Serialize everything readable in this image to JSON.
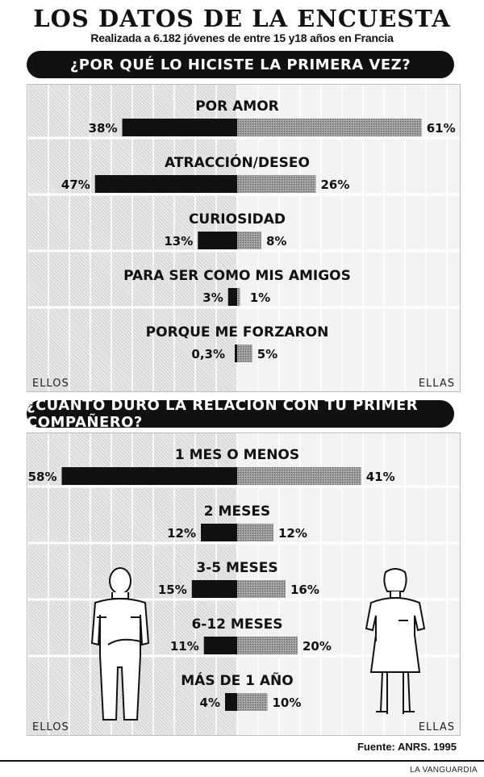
{
  "title": "LOS DATOS DE LA ENCUESTA",
  "subtitle": "Realizada a 6.182 jóvenes de entre 15 y18 años en Francia",
  "source": "Fuente: ANRS. 1995",
  "brand": "LA VANGUARDIA",
  "colors": {
    "ellos": "#111111",
    "ellas": "#8c8c8c",
    "panel": "#e9e9e9"
  },
  "chart_data": [
    {
      "type": "bar",
      "title": "¿POR QUÉ LO HICISTE LA PRIMERA VEZ?",
      "left_label": "ELLOS",
      "right_label": "ELLAS",
      "categories": [
        "POR AMOR",
        "ATRACCIÓN/DESEO",
        "CURIOSIDAD",
        "PARA SER COMO MIS AMIGOS",
        "PORQUE ME FORZARON"
      ],
      "series": [
        {
          "name": "ELLOS",
          "values": [
            38,
            47,
            13,
            3,
            0.3
          ],
          "labels": [
            "38%",
            "47%",
            "13%",
            "3%",
            "0,3%"
          ]
        },
        {
          "name": "ELLAS",
          "values": [
            61,
            26,
            8,
            1,
            5
          ],
          "labels": [
            "61%",
            "26%",
            "8%",
            "1%",
            "5%"
          ]
        }
      ],
      "xlim": [
        0,
        70
      ]
    },
    {
      "type": "bar",
      "title": "¿CUÁNTO DURÓ LA RELACIÓN CON TU PRIMER COMPAÑERO?",
      "left_label": "ELLOS",
      "right_label": "ELLAS",
      "categories": [
        "1 MES O MENOS",
        "2 MESES",
        "3-5 MESES",
        "6-12 MESES",
        "MÁS DE 1 AÑO"
      ],
      "series": [
        {
          "name": "ELLOS",
          "values": [
            58,
            12,
            15,
            11,
            4
          ],
          "labels": [
            "58%",
            "12%",
            "15%",
            "11%",
            "4%"
          ]
        },
        {
          "name": "ELLAS",
          "values": [
            41,
            12,
            16,
            20,
            10
          ],
          "labels": [
            "41%",
            "12%",
            "16%",
            "20%",
            "10%"
          ]
        }
      ],
      "xlim": [
        0,
        70
      ]
    }
  ]
}
